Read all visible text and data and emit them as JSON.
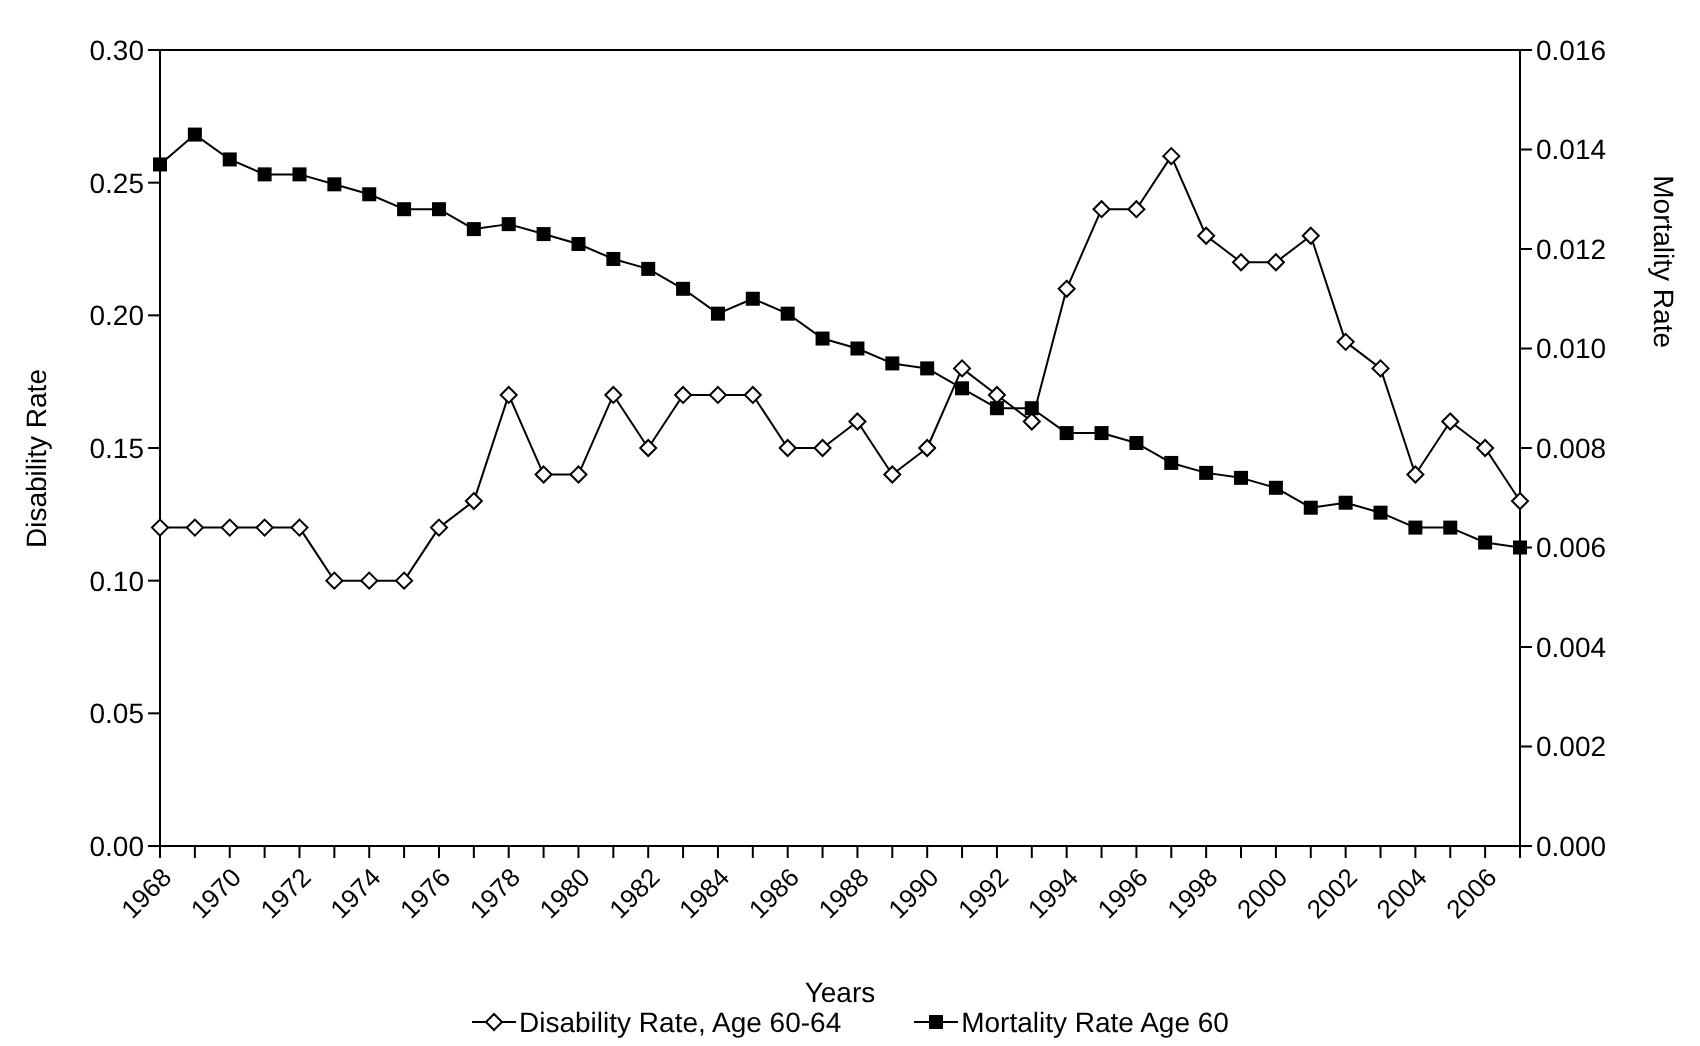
{
  "chart_data": {
    "type": "line",
    "xlabel": "Years",
    "ylabel": "Disability Rate",
    "y2label": "Mortality Rate",
    "categories": [
      "1968",
      null,
      "1970",
      null,
      "1972",
      null,
      "1974",
      null,
      "1976",
      null,
      "1978",
      null,
      "1980",
      null,
      "1982",
      null,
      "1984",
      null,
      "1986",
      null,
      "1988",
      null,
      "1990",
      null,
      "1992",
      null,
      "1994",
      null,
      "1996",
      null,
      "1998",
      null,
      "2000",
      null,
      "2002",
      null,
      "2004",
      null,
      "2006",
      null
    ],
    "series": [
      {
        "name": "Disability Rate, Age 60-64",
        "color": "#000000",
        "marker": "diamond",
        "values": [
          0.12,
          0.12,
          0.12,
          0.12,
          0.12,
          0.1,
          0.1,
          0.1,
          0.12,
          0.13,
          0.17,
          0.14,
          0.14,
          0.17,
          0.15,
          0.17,
          0.17,
          0.17,
          0.15,
          0.15,
          0.16,
          0.14,
          0.15,
          0.18,
          0.17,
          0.16,
          0.21,
          0.24,
          0.24,
          0.26,
          0.23,
          0.22,
          0.22,
          0.23,
          0.19,
          0.18,
          0.14,
          0.16,
          0.15,
          0.13
        ]
      },
      {
        "name": "Mortality Rate Age 60",
        "color": "#000000",
        "marker": "square",
        "axis": "y2",
        "values": [
          0.0137,
          0.0143,
          0.0138,
          0.0135,
          0.0135,
          0.0133,
          0.0131,
          0.0128,
          0.0128,
          0.0124,
          0.0125,
          0.0123,
          0.0121,
          0.0118,
          0.0116,
          0.0112,
          0.0107,
          0.011,
          0.0107,
          0.0102,
          0.01,
          0.0097,
          0.0096,
          0.0092,
          0.0088,
          0.0088,
          0.0083,
          0.0083,
          0.0081,
          0.0077,
          0.0075,
          0.0074,
          0.0072,
          0.0068,
          0.0069,
          0.0067,
          0.0064,
          0.0064,
          0.0061,
          0.006
        ]
      }
    ],
    "ylim": [
      0,
      0.3
    ],
    "yticks": [
      {
        "value": 0,
        "label": "0.00"
      },
      {
        "value": 0.05,
        "label": "0.05"
      },
      {
        "value": 0.1,
        "label": "0.10"
      },
      {
        "value": 0.15,
        "label": "0.15"
      },
      {
        "value": 0.2,
        "label": "0.20"
      },
      {
        "value": 0.25,
        "label": "0.25"
      },
      {
        "value": 0.3,
        "label": "0.30"
      }
    ],
    "y2lim": [
      0,
      0.016
    ],
    "y2ticks": [
      {
        "value": 0,
        "label": "0.000"
      },
      {
        "value": 0.002,
        "label": "0.002"
      },
      {
        "value": 0.004,
        "label": "0.004"
      },
      {
        "value": 0.006,
        "label": "0.006"
      },
      {
        "value": 0.008,
        "label": "0.008"
      },
      {
        "value": 0.01,
        "label": "0.010"
      },
      {
        "value": 0.012,
        "label": "0.012"
      },
      {
        "value": 0.014,
        "label": "0.014"
      },
      {
        "value": 0.016,
        "label": "0.016"
      }
    ],
    "grid": false,
    "legend": "bottom"
  }
}
